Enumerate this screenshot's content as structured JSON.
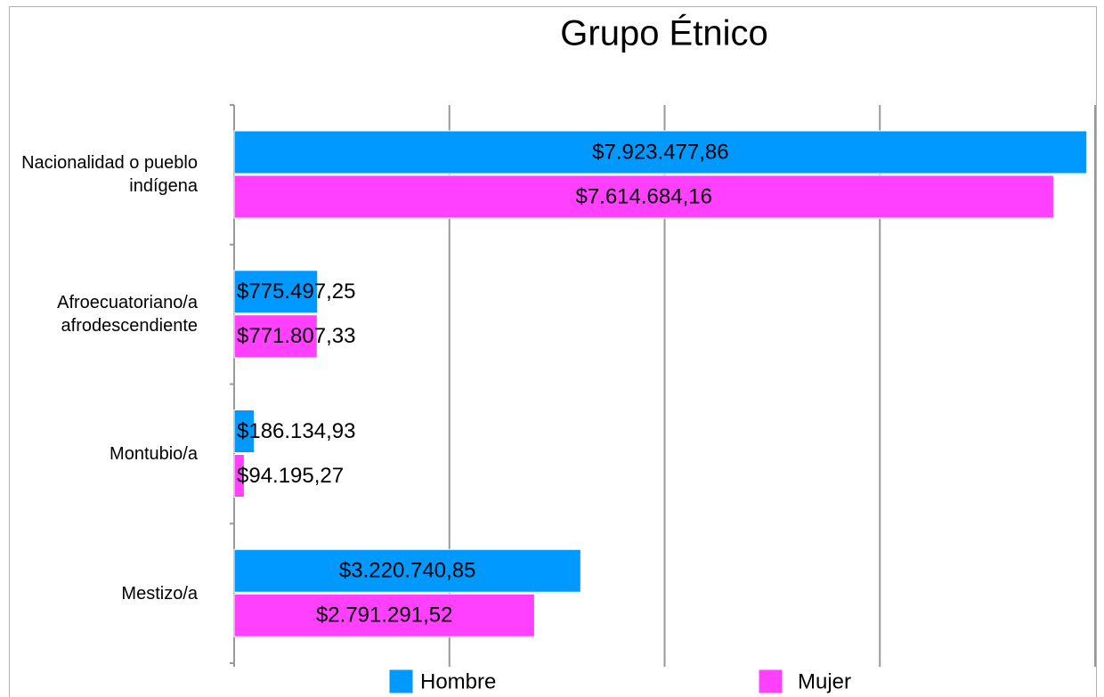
{
  "chart_data": {
    "type": "barh",
    "title": "Grupo Étnico",
    "categories": [
      "Nacionalidad o pueblo indígena",
      "Afroecuatoriano/a afrodescendiente",
      "Montubio/a",
      "Mestizo/a"
    ],
    "series": [
      {
        "name": "Hombre",
        "color": "#0099ff",
        "values": [
          7923477.86,
          775497.25,
          186134.93,
          3220740.85
        ],
        "value_labels": [
          "$7.923.477,86",
          "$775.497,25",
          "$186.134,93",
          "$3.220.740,85"
        ]
      },
      {
        "name": "Mujer",
        "color": "#ff40ff",
        "values": [
          7614684.16,
          771807.33,
          94195.27,
          2791291.52
        ],
        "value_labels": [
          "$7.614.684,16",
          "$771.807,33",
          "$94.195,27",
          "$2.791.291,52"
        ]
      }
    ],
    "xlim": [
      0,
      8000000
    ],
    "xticks": [
      0,
      2000000,
      4000000,
      6000000,
      8000000
    ],
    "grid": true,
    "legend": "bottom"
  }
}
